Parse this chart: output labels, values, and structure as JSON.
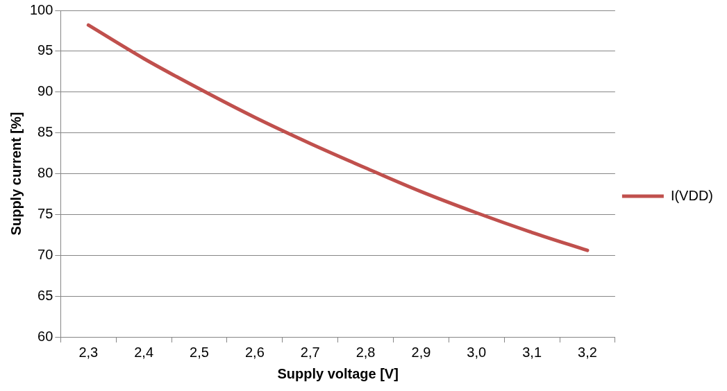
{
  "chart_data": {
    "type": "line",
    "xlabel": "Supply voltage [V]",
    "ylabel": "Supply current [%]",
    "categories": [
      "2,3",
      "2,4",
      "2,5",
      "2,6",
      "2,7",
      "2,8",
      "2,9",
      "3,0",
      "3,1",
      "3,2"
    ],
    "series": [
      {
        "name": "I(VDD)",
        "color": "#c0504d",
        "values": [
          98.2,
          94.1,
          90.4,
          86.9,
          83.7,
          80.7,
          77.8,
          75.2,
          72.8,
          70.6
        ]
      }
    ],
    "ylim": [
      60,
      100
    ],
    "yticks": [
      60,
      65,
      70,
      75,
      80,
      85,
      90,
      95,
      100
    ],
    "grid": "y",
    "legend": "right",
    "marker": "none",
    "line_style": "solid"
  }
}
